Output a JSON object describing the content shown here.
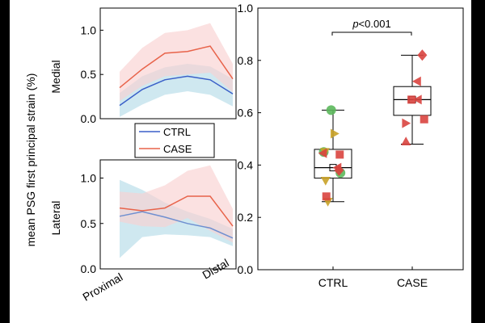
{
  "figure": {
    "shared_ylabel": "mean PSG first principal strain (%)"
  },
  "chart_data": [
    {
      "type": "area",
      "panel": "medial",
      "title": "Medial",
      "ylabel": "Medial",
      "ylim": [
        0,
        1.25
      ],
      "yticks": [
        0.0,
        0.5,
        1.0
      ],
      "ytick_labels": [
        "0.0",
        "0.5",
        "1.0"
      ],
      "x": [
        0,
        1,
        2,
        3,
        4,
        5
      ],
      "series": [
        {
          "name": "CTRL",
          "color": "#3a5fc8",
          "band_color": "#b5dce8",
          "values": [
            0.15,
            0.33,
            0.44,
            0.48,
            0.44,
            0.28
          ],
          "lower": [
            0.02,
            0.16,
            0.27,
            0.31,
            0.27,
            0.14
          ],
          "upper": [
            0.29,
            0.48,
            0.58,
            0.62,
            0.59,
            0.45
          ]
        },
        {
          "name": "CASE",
          "color": "#e8634a",
          "band_color": "#f9d1d1",
          "values": [
            0.35,
            0.56,
            0.74,
            0.76,
            0.82,
            0.45
          ],
          "lower": [
            0.2,
            0.37,
            0.48,
            0.5,
            0.52,
            0.3
          ],
          "upper": [
            0.53,
            0.8,
            0.97,
            1.0,
            1.08,
            0.62
          ]
        }
      ]
    },
    {
      "type": "area",
      "panel": "lateral",
      "title": "Lateral",
      "ylabel": "Lateral",
      "xlabel_left": "Proximal",
      "xlabel_right": "Distal",
      "ylim": [
        0,
        1.2
      ],
      "yticks": [
        0.0,
        0.5,
        1.0
      ],
      "ytick_labels": [
        "0.0",
        "0.5",
        "1.0"
      ],
      "x": [
        0,
        1,
        2,
        3,
        4,
        5
      ],
      "series": [
        {
          "name": "CTRL",
          "color": "#6f8fd0",
          "band_color": "#b5dce8",
          "values": [
            0.58,
            0.63,
            0.57,
            0.5,
            0.45,
            0.34
          ],
          "lower": [
            0.12,
            0.35,
            0.38,
            0.37,
            0.35,
            0.25
          ],
          "upper": [
            0.98,
            0.87,
            0.73,
            0.63,
            0.55,
            0.44
          ]
        },
        {
          "name": "CASE",
          "color": "#e8634a",
          "band_color": "#f9d1d1",
          "values": [
            0.67,
            0.64,
            0.67,
            0.8,
            0.8,
            0.47
          ],
          "lower": [
            0.52,
            0.47,
            0.46,
            0.56,
            0.42,
            0.29
          ],
          "upper": [
            0.85,
            0.83,
            0.92,
            1.08,
            1.14,
            0.66
          ]
        }
      ]
    },
    {
      "type": "box",
      "panel": "comparison",
      "categories": [
        "CTRL",
        "CASE"
      ],
      "ylim": [
        0,
        1.0
      ],
      "yticks": [
        0.0,
        0.2,
        0.4,
        0.6,
        0.8,
        1.0
      ],
      "ytick_labels": [
        "0.0",
        "0.2",
        "0.4",
        "0.6",
        "0.8",
        "1.0"
      ],
      "annotation": {
        "prefix": "p",
        "text": "<0.001"
      },
      "boxes": [
        {
          "category": "CTRL",
          "min": 0.26,
          "q1": 0.35,
          "median": 0.39,
          "q3": 0.46,
          "max": 0.61,
          "mean": 0.39
        },
        {
          "category": "CASE",
          "min": 0.48,
          "q1": 0.59,
          "median": 0.65,
          "q3": 0.7,
          "max": 0.82,
          "mean": 0.65
        }
      ],
      "points": [
        {
          "group": "CTRL",
          "shape": "circle",
          "color": "#5cb85c",
          "dx": -0.05,
          "y": 0.61
        },
        {
          "group": "CTRL",
          "shape": "circle",
          "color": "#5cb85c",
          "dx": -0.25,
          "y": 0.45
        },
        {
          "group": "CTRL",
          "shape": "circle",
          "color": "#5cb85c",
          "dx": 0.2,
          "y": 0.37
        },
        {
          "group": "CTRL",
          "shape": "tri-right",
          "color": "#c9a227",
          "dx": 0.04,
          "y": 0.52
        },
        {
          "group": "CTRL",
          "shape": "tri-down",
          "color": "#c9a227",
          "dx": -0.22,
          "y": 0.45
        },
        {
          "group": "CTRL",
          "shape": "tri-down",
          "color": "#c9a227",
          "dx": -0.2,
          "y": 0.34
        },
        {
          "group": "CTRL",
          "shape": "tri-down",
          "color": "#c9a227",
          "dx": -0.14,
          "y": 0.26
        },
        {
          "group": "CTRL",
          "shape": "square",
          "color": "#d9443f",
          "dx": 0.18,
          "y": 0.44
        },
        {
          "group": "CTRL",
          "shape": "square",
          "color": "#d9443f",
          "dx": -0.18,
          "y": 0.28
        },
        {
          "group": "CTRL",
          "shape": "tri-left",
          "color": "#d9443f",
          "dx": -0.27,
          "y": 0.445
        },
        {
          "group": "CTRL",
          "shape": "tri-left",
          "color": "#d9443f",
          "dx": 0.12,
          "y": 0.39
        },
        {
          "group": "CTRL",
          "shape": "diamond",
          "color": "#d9443f",
          "dx": 0.16,
          "y": 0.38
        },
        {
          "group": "CASE",
          "shape": "diamond",
          "color": "#d9443f",
          "dx": 0.27,
          "y": 0.82
        },
        {
          "group": "CASE",
          "shape": "tri-left",
          "color": "#d9443f",
          "dx": 0.13,
          "y": 0.72
        },
        {
          "group": "CASE",
          "shape": "tri-left",
          "color": "#d9443f",
          "dx": 0.15,
          "y": 0.65
        },
        {
          "group": "CASE",
          "shape": "tri-right",
          "color": "#d9443f",
          "dx": -0.17,
          "y": 0.56
        },
        {
          "group": "CASE",
          "shape": "square",
          "color": "#d9443f",
          "dx": -0.02,
          "y": 0.65
        },
        {
          "group": "CASE",
          "shape": "square",
          "color": "#d9443f",
          "dx": 0.32,
          "y": 0.575
        },
        {
          "group": "CASE",
          "shape": "tri-up",
          "color": "#d9443f",
          "dx": -0.17,
          "y": 0.49
        }
      ]
    }
  ],
  "legend": {
    "items": [
      {
        "label": "CTRL",
        "color": "#3a5fc8"
      },
      {
        "label": "CASE",
        "color": "#e8634a"
      }
    ]
  }
}
